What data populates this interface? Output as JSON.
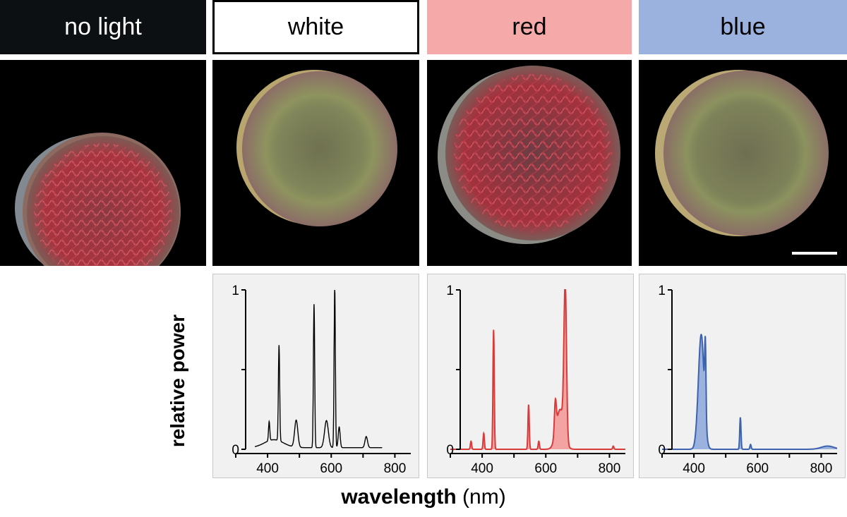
{
  "headers": [
    {
      "label": "no light",
      "color": "#0c1013"
    },
    {
      "label": "white",
      "color": "#ffffff"
    },
    {
      "label": "red",
      "color": "#f5a9a9"
    },
    {
      "label": "blue",
      "color": "#9bb2de"
    }
  ],
  "ylabel": "relative power",
  "xlabel_bold": "wavelength",
  "xlabel_unit": "(nm)",
  "chart_data": [
    {
      "type": "line",
      "condition": "white",
      "line_color": "#000000",
      "fill": false,
      "xlim": [
        300,
        850
      ],
      "ylim": [
        0,
        1
      ],
      "xticks": [
        400,
        600,
        800
      ],
      "yticks": [
        0,
        1
      ],
      "x_range": [
        360,
        760
      ],
      "baseline": 0.01,
      "features": [
        {
          "type": "bump",
          "center": 420,
          "width": 30,
          "height": 0.05
        },
        {
          "type": "peak",
          "center": 405,
          "width": 2,
          "height": 0.12
        },
        {
          "type": "peak",
          "center": 436,
          "width": 2,
          "height": 0.6
        },
        {
          "type": "peak",
          "center": 490,
          "width": 5,
          "height": 0.17
        },
        {
          "type": "peak",
          "center": 546,
          "width": 2,
          "height": 0.9
        },
        {
          "type": "peak",
          "center": 585,
          "width": 6,
          "height": 0.17
        },
        {
          "type": "peak",
          "center": 611,
          "width": 2,
          "height": 1.0
        },
        {
          "type": "peak",
          "center": 625,
          "width": 3,
          "height": 0.13
        },
        {
          "type": "peak",
          "center": 710,
          "width": 4,
          "height": 0.07
        }
      ]
    },
    {
      "type": "area",
      "condition": "red",
      "line_color": "#d93b3b",
      "fill_color": "#f4a3a3",
      "fill": true,
      "xlim": [
        300,
        850
      ],
      "ylim": [
        0,
        1
      ],
      "xticks": [
        400,
        600,
        800
      ],
      "yticks": [
        0,
        1
      ],
      "x_range": [
        300,
        850
      ],
      "baseline": 0.0,
      "features": [
        {
          "type": "peak",
          "center": 365,
          "width": 2,
          "height": 0.05
        },
        {
          "type": "peak",
          "center": 405,
          "width": 2,
          "height": 0.1
        },
        {
          "type": "peak",
          "center": 436,
          "width": 2,
          "height": 0.75
        },
        {
          "type": "peak",
          "center": 546,
          "width": 2,
          "height": 0.28
        },
        {
          "type": "peak",
          "center": 578,
          "width": 2,
          "height": 0.05
        },
        {
          "type": "bump",
          "center": 645,
          "width": 12,
          "height": 0.25
        },
        {
          "type": "peak",
          "center": 630,
          "width": 3,
          "height": 0.2
        },
        {
          "type": "peak",
          "center": 661,
          "width": 4,
          "height": 0.95
        },
        {
          "type": "peak",
          "center": 812,
          "width": 2,
          "height": 0.02
        }
      ]
    },
    {
      "type": "area",
      "condition": "blue",
      "line_color": "#3e63ae",
      "fill_color": "#9bb2de",
      "fill": true,
      "xlim": [
        300,
        850
      ],
      "ylim": [
        0,
        1
      ],
      "xticks": [
        400,
        600,
        800
      ],
      "yticks": [
        0,
        1
      ],
      "x_range": [
        300,
        850
      ],
      "baseline": 0.0,
      "features": [
        {
          "type": "bump",
          "center": 423,
          "width": 9,
          "height": 0.72
        },
        {
          "type": "peak",
          "center": 436,
          "width": 2,
          "height": 0.45
        },
        {
          "type": "peak",
          "center": 546,
          "width": 2,
          "height": 0.2
        },
        {
          "type": "peak",
          "center": 578,
          "width": 2,
          "height": 0.03
        },
        {
          "type": "bump",
          "center": 820,
          "width": 20,
          "height": 0.02
        }
      ]
    }
  ]
}
